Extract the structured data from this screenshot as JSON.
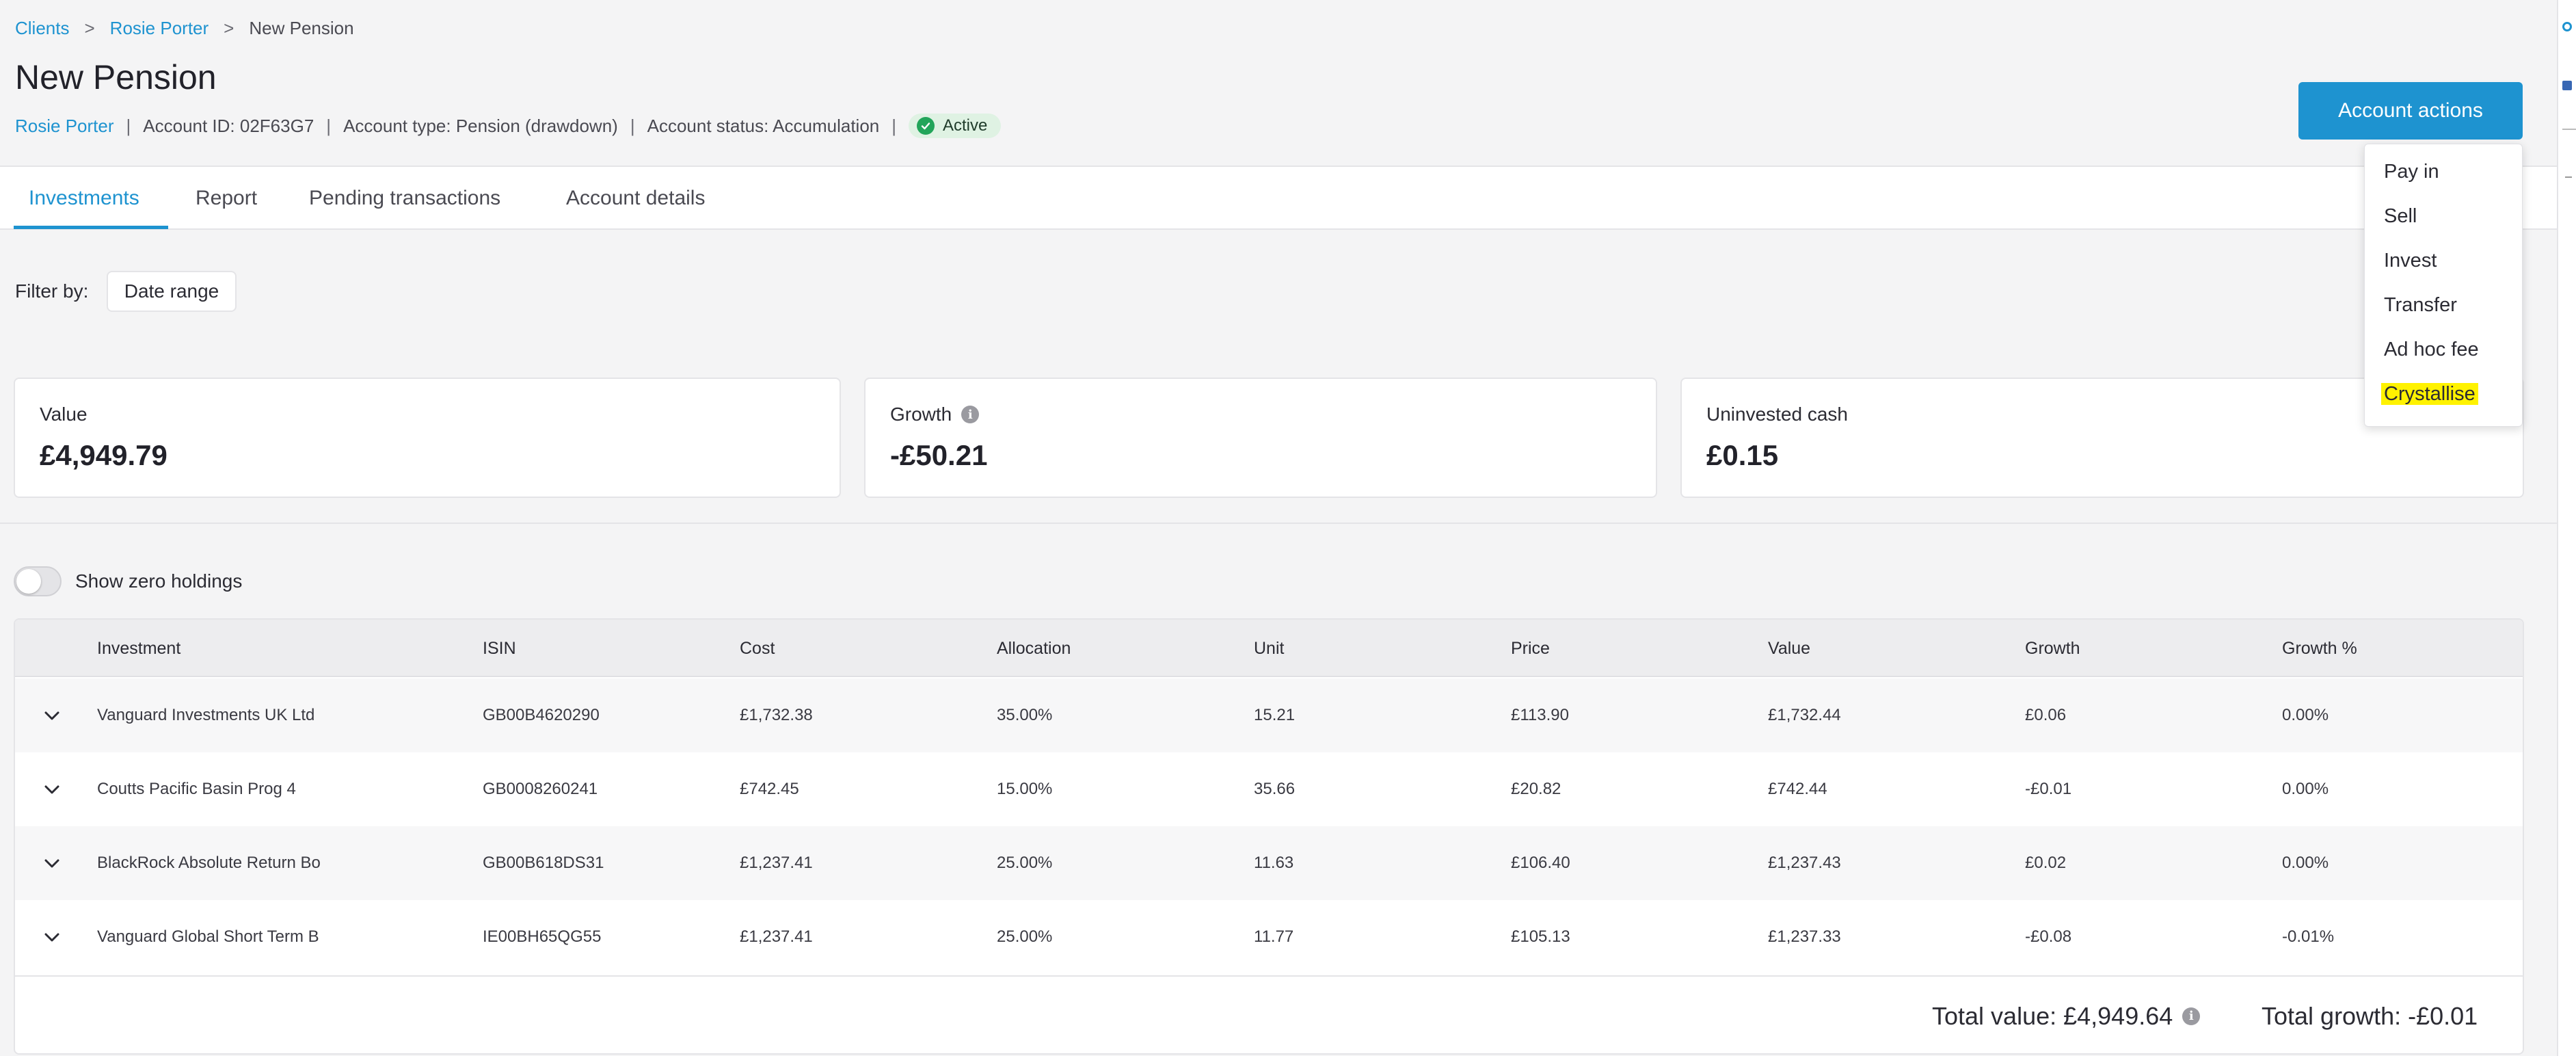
{
  "breadcrumb": {
    "items": [
      "Clients",
      "Rosie Porter",
      "New Pension"
    ],
    "separator": ">"
  },
  "page": {
    "title": "New Pension"
  },
  "meta": {
    "client_link": "Rosie Porter",
    "account_id": "Account ID: 02F63G7",
    "account_type": "Account type: Pension (drawdown)",
    "account_status": "Account status: Accumulation",
    "status_badge": "Active",
    "separator": "|"
  },
  "actions": {
    "button_label": "Account actions",
    "menu": [
      "Pay in",
      "Sell",
      "Invest",
      "Transfer",
      "Ad hoc fee",
      "Crystallise"
    ],
    "highlighted_item": "Crystallise"
  },
  "tabs": [
    {
      "label": "Investments",
      "active": true
    },
    {
      "label": "Report",
      "active": false
    },
    {
      "label": "Pending transactions",
      "active": false
    },
    {
      "label": "Account details",
      "active": false
    }
  ],
  "filter": {
    "label": "Filter by:",
    "button": "Date range"
  },
  "cards": {
    "value": {
      "label": "Value",
      "amount": "£4,949.79"
    },
    "growth": {
      "label": "Growth",
      "amount": "-£50.21"
    },
    "cash": {
      "label": "Uninvested cash",
      "amount": "£0.15"
    }
  },
  "toggle": {
    "label": "Show zero holdings",
    "on": false
  },
  "table": {
    "headers": [
      "Investment",
      "ISIN",
      "Cost",
      "Allocation",
      "Unit",
      "Price",
      "Value",
      "Growth",
      "Growth %"
    ],
    "rows": [
      [
        "Vanguard Investments UK Ltd",
        "GB00B4620290",
        "£1,732.38",
        "35.00%",
        "15.21",
        "£113.90",
        "£1,732.44",
        "£0.06",
        "0.00%"
      ],
      [
        "Coutts Pacific Basin Prog 4",
        "GB0008260241",
        "£742.45",
        "15.00%",
        "35.66",
        "£20.82",
        "£742.44",
        "-£0.01",
        "0.00%"
      ],
      [
        "BlackRock Absolute Return Bo",
        "GB00B618DS31",
        "£1,237.41",
        "25.00%",
        "11.63",
        "£106.40",
        "£1,237.43",
        "£0.02",
        "0.00%"
      ],
      [
        "Vanguard Global Short Term B",
        "IE00BH65QG55",
        "£1,237.41",
        "25.00%",
        "11.77",
        "£105.13",
        "£1,237.33",
        "-£0.08",
        "-0.01%"
      ]
    ],
    "total_value": "Total value: £4,949.64",
    "total_growth": "Total growth: -£0.01"
  },
  "colors": {
    "accent": "#1e93d0",
    "active_badge_bg": "#dff2e3",
    "active_check": "#22a55a",
    "highlight": "#fff200"
  },
  "icons": [
    "check-circle-icon",
    "info-icon",
    "chevron-down-icon"
  ]
}
